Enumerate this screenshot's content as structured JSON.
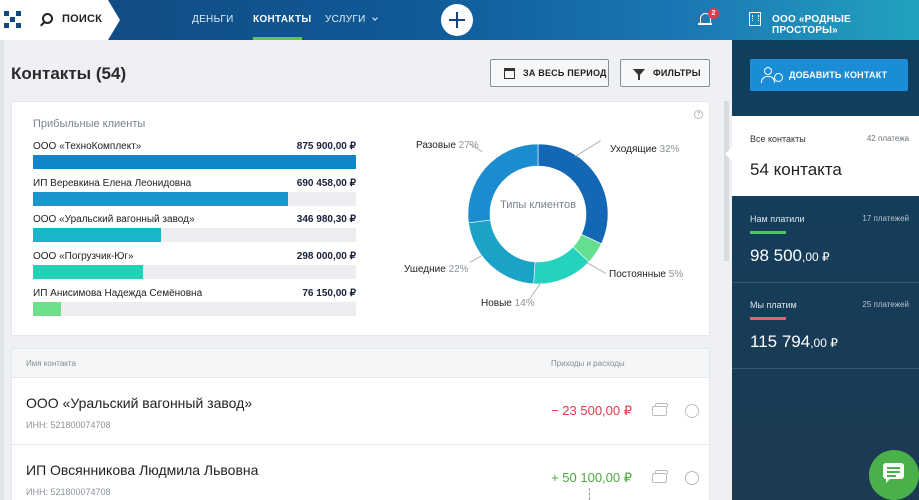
{
  "topbar": {
    "search_label": "ПОИСК",
    "nav": [
      {
        "label": "ДЕНЬГИ",
        "active": false
      },
      {
        "label": "КОНТАКТЫ",
        "active": true
      },
      {
        "label": "УСЛУГИ",
        "active": false
      }
    ],
    "notification_count": "2",
    "org_name": "ООО «РОДНЫЕ ПРОСТОРЫ»"
  },
  "main": {
    "title": "Контакты (54)",
    "period_button": "ЗА ВЕСЬ ПЕРИОД",
    "filters_button": "ФИЛЬТРЫ"
  },
  "profitable": {
    "title": "Прибыльные клиенты",
    "clients": [
      {
        "name": "ООО «ТехноКомплект»",
        "amount": "875 900,00 ₽",
        "value": 875900,
        "color": "#0f86c9"
      },
      {
        "name": "ИП Веревкина Елена Леонидовна",
        "amount": "690 458,00 ₽",
        "value": 690458,
        "color": "#1b95cc"
      },
      {
        "name": "ООО «Уральский вагонный завод»",
        "amount": "346 980,30 ₽",
        "value": 346980.3,
        "color": "#19b6c9"
      },
      {
        "name": "ООО «Погрузчик-Юг»",
        "amount": "298 000,00 ₽",
        "value": 298000,
        "color": "#22d1b8"
      },
      {
        "name": "ИП Анисимова Надежда Семёновна",
        "amount": "76 150,00 ₽",
        "value": 76150,
        "color": "#6fe08a"
      }
    ],
    "max_value": 875900
  },
  "chart_data": {
    "type": "pie",
    "title": "Типы клиентов",
    "slices": [
      {
        "label": "Уходящие",
        "percent": 32,
        "percent_text": "32%",
        "color": "#1467b4"
      },
      {
        "label": "Постоянные",
        "percent": 5,
        "percent_text": "5%",
        "color": "#63e08f"
      },
      {
        "label": "Новые",
        "percent": 14,
        "percent_text": "14%",
        "color": "#23d3c0"
      },
      {
        "label": "Ушедние",
        "percent": 22,
        "percent_text": "22%",
        "color": "#1aa3c6"
      },
      {
        "label": "Разовые",
        "percent": 27,
        "percent_text": "27%",
        "color": "#1b8ccf"
      }
    ]
  },
  "table": {
    "col_name": "Имя контакта",
    "col_flow": "Приходы и расходы",
    "rows": [
      {
        "name": "ООО «Уральский вагонный завод»",
        "inn": "ИНН: 521800074708",
        "amount": "− 23 500,00 ₽",
        "sign": "neg"
      },
      {
        "name": "ИП Овсянникова Людмила Львовна",
        "inn": "ИНН: 521800074708",
        "amount": "+ 50 100,00 ₽",
        "sign": "pos"
      }
    ]
  },
  "sidebar": {
    "add_button": "ДОБАВИТЬ КОНТАКТ",
    "stats": [
      {
        "label": "Все контакты",
        "count": "42 платежа",
        "value": "54 контакта",
        "cents": "",
        "accent": ""
      },
      {
        "label": "Нам платили",
        "count": "17 платежей",
        "value": "98 500",
        "cents": ",00 ₽",
        "accent": "#52c46a"
      },
      {
        "label": "Мы платим",
        "count": "25 платежей",
        "value": "115 794",
        "cents": ",00 ₽",
        "accent": "#e8606e"
      }
    ]
  }
}
